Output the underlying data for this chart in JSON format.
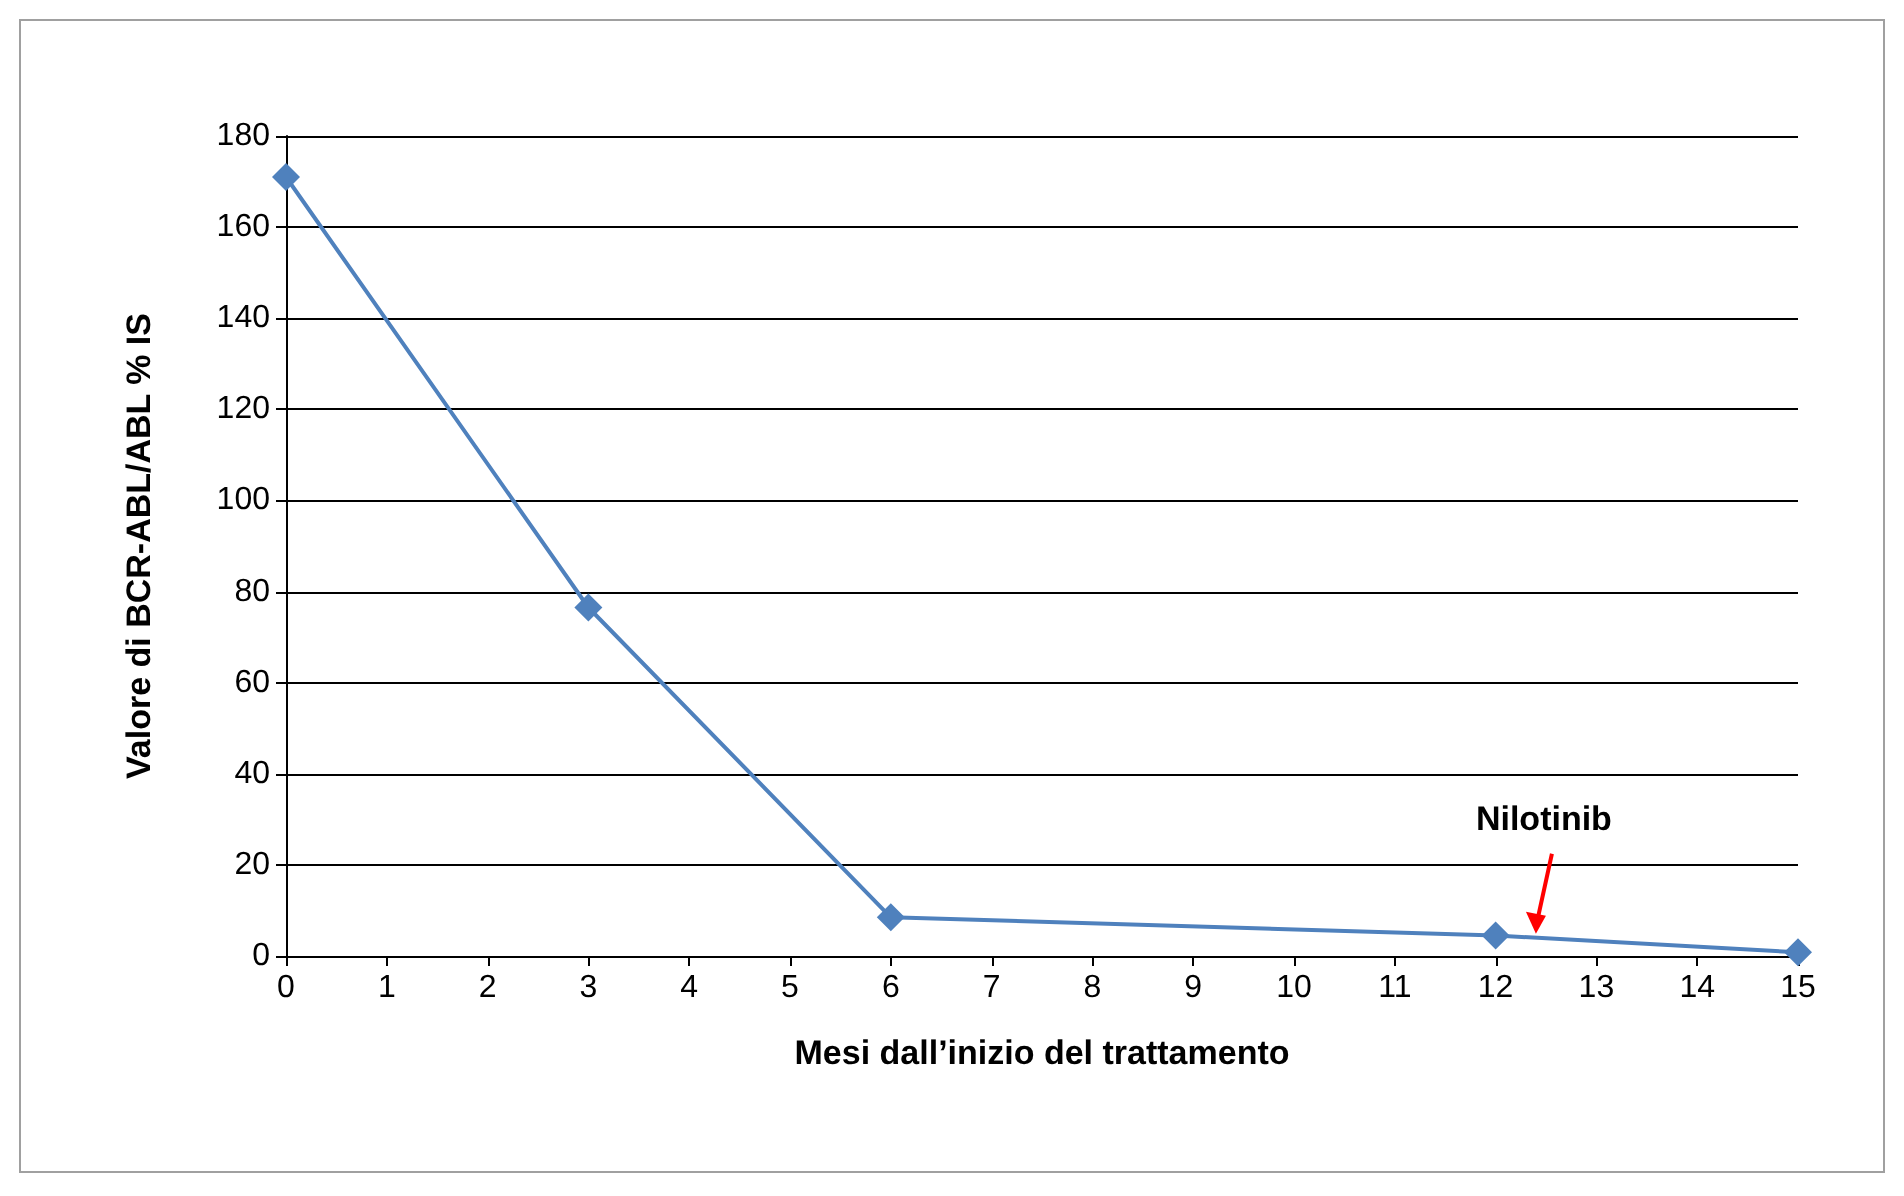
{
  "chart_data": {
    "type": "line",
    "xlabel": "Mesi dall’inizio del trattamento",
    "ylabel": "Valore di BCR-ABL/ABL % IS",
    "x": [
      0,
      3,
      6,
      12,
      15
    ],
    "series": [
      {
        "color": "#4f81bd",
        "values": [
          171,
          76.5,
          8.5,
          4.5,
          0.8
        ]
      }
    ],
    "xlim": [
      0,
      15
    ],
    "xticks": [
      0,
      1,
      2,
      3,
      4,
      5,
      6,
      7,
      8,
      9,
      10,
      11,
      12,
      13,
      14,
      15
    ],
    "ylim": [
      0,
      180
    ],
    "yticks": [
      0,
      20,
      40,
      60,
      80,
      100,
      120,
      140,
      160,
      180
    ],
    "grid": "y",
    "marker": "diamond",
    "line_style": "solid",
    "annotations": [
      {
        "text": "Nilotinib",
        "x": 12.4,
        "y": 4
      }
    ]
  }
}
